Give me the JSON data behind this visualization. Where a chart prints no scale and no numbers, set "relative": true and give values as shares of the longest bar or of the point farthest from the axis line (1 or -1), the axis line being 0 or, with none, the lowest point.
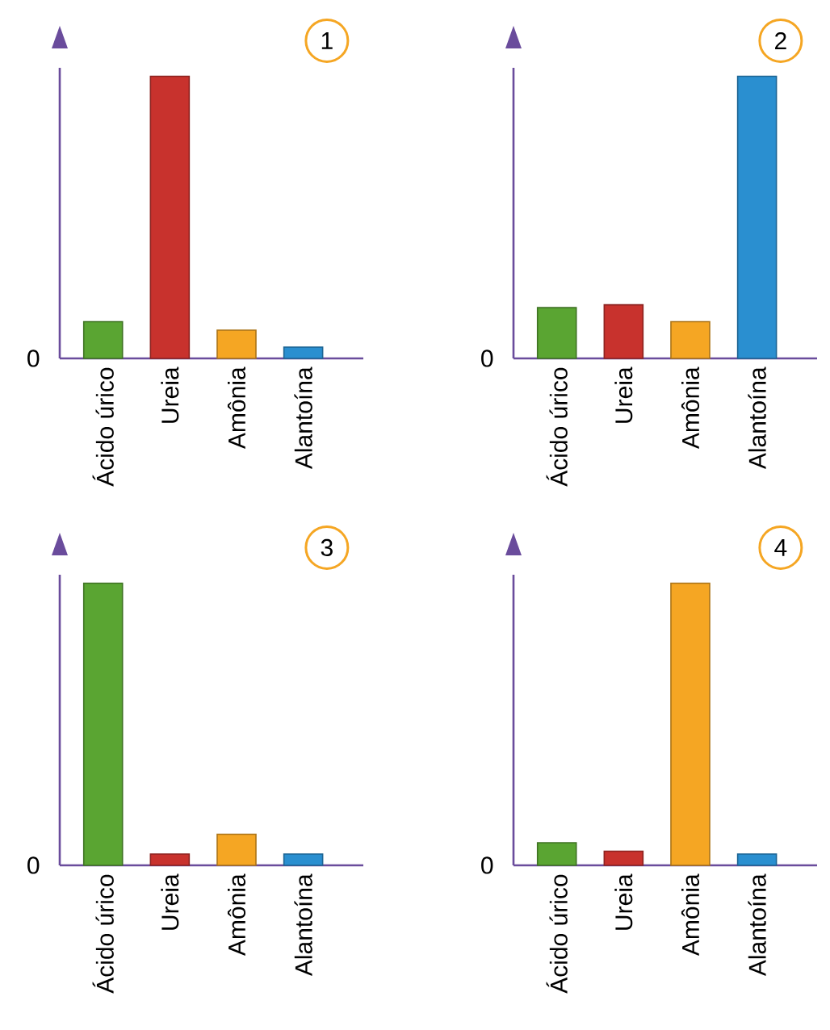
{
  "chart_data": [
    {
      "type": "bar",
      "title": "1",
      "categories": [
        "Ácido úrico",
        "Ureia",
        "Amônia",
        "Alantoína"
      ],
      "values": [
        0.13,
        1,
        0.1,
        0.04
      ],
      "colors": [
        "#5aa532",
        "#c8322d",
        "#f5a623",
        "#2a8fd0"
      ],
      "relative": true,
      "annotations": [
        "0"
      ]
    },
    {
      "type": "bar",
      "title": "2",
      "categories": [
        "Ácido úrico",
        "Ureia",
        "Amônia",
        "Alantoína"
      ],
      "values": [
        0.18,
        0.19,
        0.13,
        1
      ],
      "colors": [
        "#5aa532",
        "#c8322d",
        "#f5a623",
        "#2a8fd0"
      ],
      "relative": true,
      "annotations": [
        "0"
      ]
    },
    {
      "type": "bar",
      "title": "3",
      "categories": [
        "Ácido úrico",
        "Ureia",
        "Amônia",
        "Alantoína"
      ],
      "values": [
        1,
        0.04,
        0.11,
        0.04
      ],
      "colors": [
        "#5aa532",
        "#c8322d",
        "#f5a623",
        "#2a8fd0"
      ],
      "relative": true,
      "annotations": [
        "0"
      ]
    },
    {
      "type": "bar",
      "title": "4",
      "categories": [
        "Ácido úrico",
        "Ureia",
        "Amônia",
        "Alantoína"
      ],
      "values": [
        0.08,
        0.05,
        1,
        0.04
      ],
      "colors": [
        "#5aa532",
        "#c8322d",
        "#f5a623",
        "#2a8fd0"
      ],
      "relative": true,
      "annotations": [
        "0"
      ]
    }
  ]
}
